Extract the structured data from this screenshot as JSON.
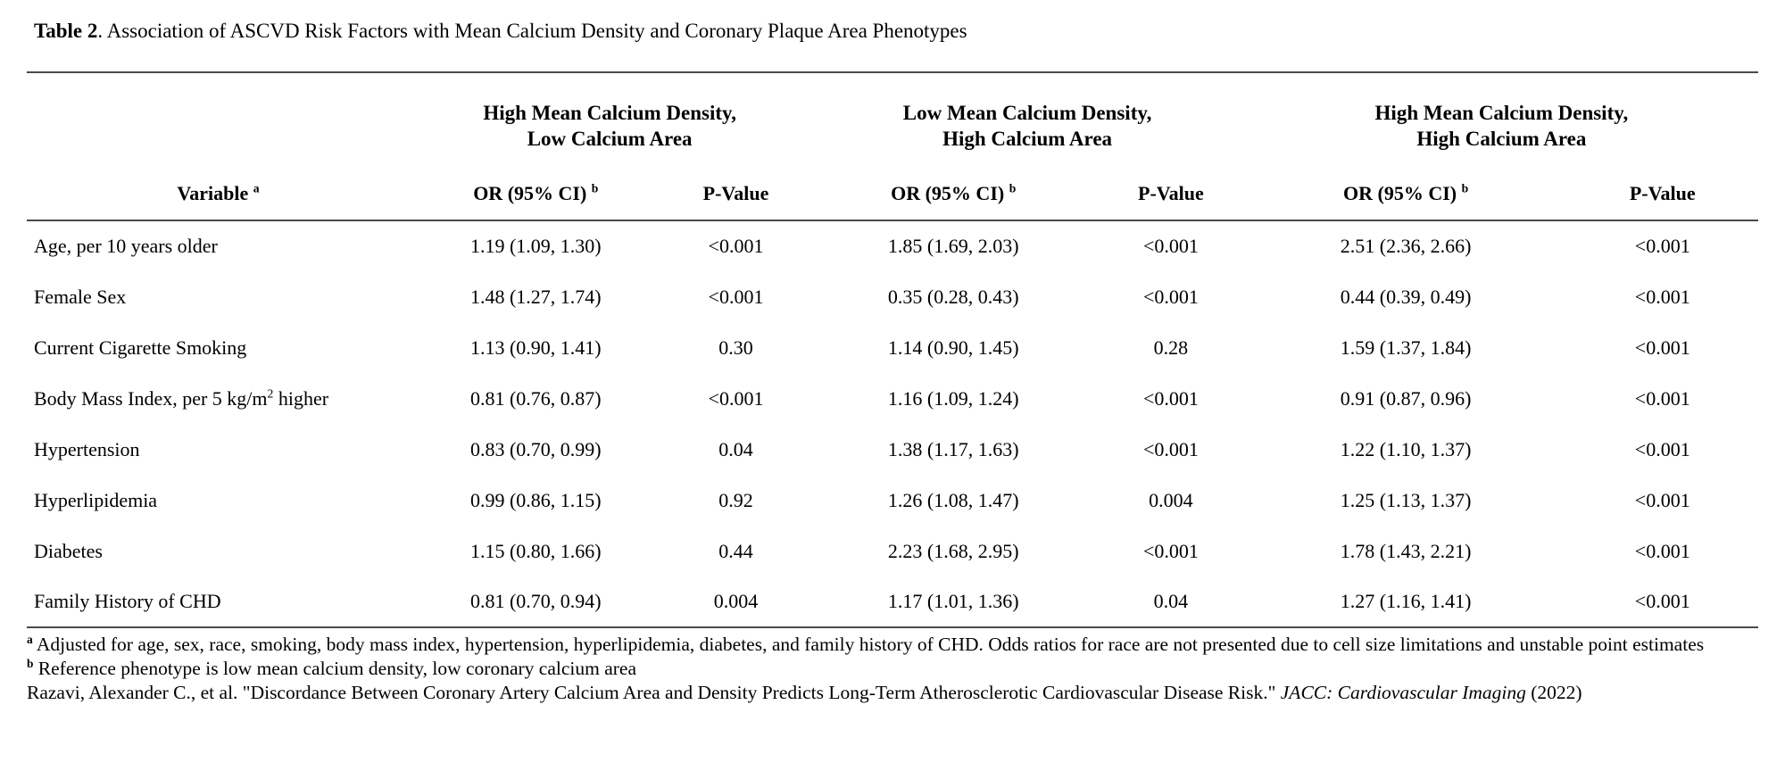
{
  "title": {
    "bold": "Table 2",
    "rest": ". Association of ASCVD Risk Factors with Mean Calcium Density and Coronary Plaque Area Phenotypes"
  },
  "table": {
    "column_groups": [
      {
        "line1": "High Mean Calcium Density,",
        "line2": "Low Calcium Area"
      },
      {
        "line1": "Low Mean Calcium Density,",
        "line2": "High Calcium Area"
      },
      {
        "line1": "High Mean Calcium Density,",
        "line2": "High Calcium Area"
      }
    ],
    "sub_headers": {
      "variable": {
        "label": "Variable",
        "sup": "a"
      },
      "or": {
        "label": "OR (95% CI)",
        "sup": "b"
      },
      "pvalue": "P-Value"
    },
    "rows": [
      {
        "variable": {
          "pre": "Age, per 10 years older",
          "sup": "",
          "post": ""
        },
        "cells": [
          "1.19 (1.09, 1.30)",
          "<0.001",
          "1.85 (1.69, 2.03)",
          "<0.001",
          "2.51 (2.36, 2.66)",
          "<0.001"
        ]
      },
      {
        "variable": {
          "pre": "Female Sex",
          "sup": "",
          "post": ""
        },
        "cells": [
          "1.48 (1.27, 1.74)",
          "<0.001",
          "0.35 (0.28, 0.43)",
          "<0.001",
          "0.44 (0.39, 0.49)",
          "<0.001"
        ]
      },
      {
        "variable": {
          "pre": "Current Cigarette Smoking",
          "sup": "",
          "post": ""
        },
        "cells": [
          "1.13 (0.90, 1.41)",
          "0.30",
          "1.14 (0.90, 1.45)",
          "0.28",
          "1.59 (1.37, 1.84)",
          "<0.001"
        ]
      },
      {
        "variable": {
          "pre": "Body Mass Index, per 5 kg/m",
          "sup": "2",
          "post": " higher"
        },
        "cells": [
          "0.81 (0.76, 0.87)",
          "<0.001",
          "1.16 (1.09, 1.24)",
          "<0.001",
          "0.91 (0.87, 0.96)",
          "<0.001"
        ]
      },
      {
        "variable": {
          "pre": "Hypertension",
          "sup": "",
          "post": ""
        },
        "cells": [
          "0.83 (0.70, 0.99)",
          "0.04",
          "1.38 (1.17, 1.63)",
          "<0.001",
          "1.22 (1.10, 1.37)",
          "<0.001"
        ]
      },
      {
        "variable": {
          "pre": "Hyperlipidemia",
          "sup": "",
          "post": ""
        },
        "cells": [
          "0.99 (0.86, 1.15)",
          "0.92",
          "1.26 (1.08, 1.47)",
          "0.004",
          "1.25 (1.13, 1.37)",
          "<0.001"
        ]
      },
      {
        "variable": {
          "pre": "Diabetes",
          "sup": "",
          "post": ""
        },
        "cells": [
          "1.15 (0.80, 1.66)",
          "0.44",
          "2.23 (1.68, 2.95)",
          "<0.001",
          "1.78 (1.43, 2.21)",
          "<0.001"
        ]
      },
      {
        "variable": {
          "pre": "Family History of CHD",
          "sup": "",
          "post": ""
        },
        "cells": [
          "0.81 (0.70, 0.94)",
          "0.004",
          "1.17 (1.01, 1.36)",
          "0.04",
          "1.27 (1.16, 1.41)",
          "<0.001"
        ]
      }
    ]
  },
  "footnotes": [
    {
      "marker": "a",
      "text": "Adjusted for age, sex, race, smoking, body mass index, hypertension, hyperlipidemia, diabetes, and family history of CHD. Odds ratios for race are not presented due to cell size limitations and unstable point estimates"
    },
    {
      "marker": "b",
      "text": "Reference phenotype is low mean calcium density, low coronary calcium area"
    }
  ],
  "citation": {
    "pre": "Razavi, Alexander C., et al. \"Discordance Between Coronary Artery Calcium Area and Density Predicts Long-Term Atherosclerotic Cardiovascular Disease Risk.\" ",
    "italic": "JACC: Cardiovascular Imaging",
    "post": " (2022)"
  }
}
